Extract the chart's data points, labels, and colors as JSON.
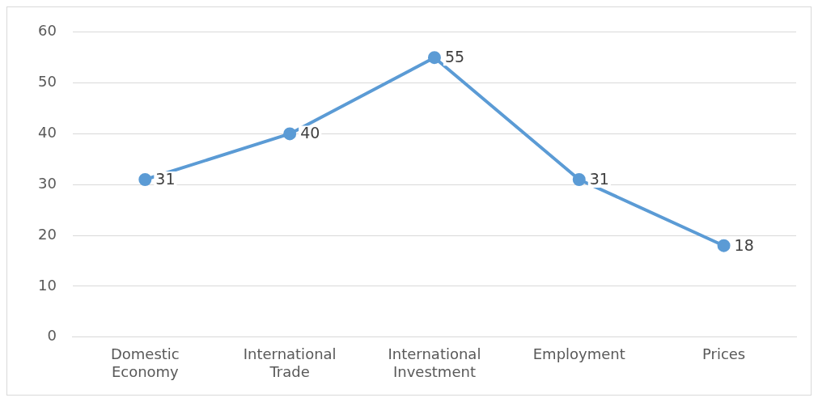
{
  "chart_data": {
    "type": "line",
    "categories": [
      "Domestic Economy",
      "International Trade",
      "International Investment",
      "Employment",
      "Prices"
    ],
    "series": [
      {
        "color": "#5b9bd5",
        "values": [
          31,
          40,
          55,
          31,
          18
        ]
      }
    ],
    "ylim": [
      0,
      60
    ],
    "yticks": [
      0,
      10,
      20,
      30,
      40,
      50,
      60
    ],
    "grid": "y",
    "legend": false,
    "marker": "circle",
    "line_style": "solid",
    "data_labels": true
  }
}
